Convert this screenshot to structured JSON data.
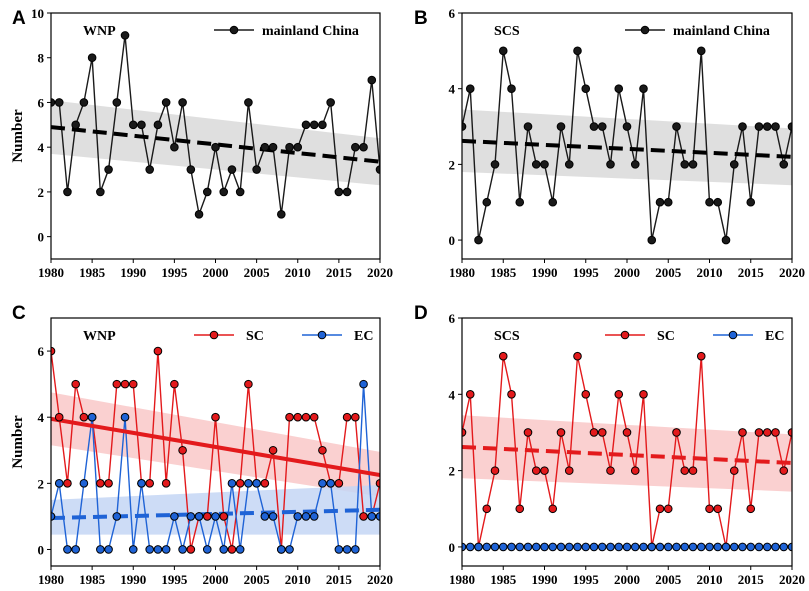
{
  "colors": {
    "black": "#000000",
    "line_black": "#1a1a1a",
    "red": "#e31a1c",
    "blue": "#1f63d6",
    "gray_band": "#d9d9d9",
    "red_band": "#f9c8c8",
    "blue_band": "#c4d6f5"
  },
  "chart_data": [
    {
      "panel_label": "A",
      "type": "line",
      "region_label": "WNP",
      "ylabel": "Number",
      "xlabel": "",
      "xlim": [
        1980,
        2020
      ],
      "ylim": [
        -1,
        10
      ],
      "xticks": [
        1980,
        1985,
        1990,
        1995,
        2000,
        2005,
        2010,
        2015,
        2020
      ],
      "yticks": [
        0,
        2,
        4,
        6,
        8,
        10
      ],
      "legend": "top-right",
      "years": [
        1980,
        1981,
        1982,
        1983,
        1984,
        1985,
        1986,
        1987,
        1988,
        1989,
        1990,
        1991,
        1992,
        1993,
        1994,
        1995,
        1996,
        1997,
        1998,
        1999,
        2000,
        2001,
        2002,
        2003,
        2004,
        2005,
        2006,
        2007,
        2008,
        2009,
        2010,
        2011,
        2012,
        2013,
        2014,
        2015,
        2016,
        2017,
        2018,
        2019,
        2020
      ],
      "series": [
        {
          "name": "mainland China",
          "color": "#1a1a1a",
          "marker_fill": "#1a1a1a",
          "values": [
            6,
            6,
            2,
            5,
            6,
            8,
            2,
            3,
            6,
            9,
            5,
            5,
            3,
            5,
            6,
            4,
            6,
            3,
            1,
            2,
            4,
            2,
            3,
            2,
            6,
            3,
            4,
            4,
            1,
            4,
            4,
            5,
            5,
            5,
            6,
            2,
            2,
            4,
            4,
            7,
            3
          ],
          "trend": {
            "start": 4.9,
            "end": 3.35,
            "style": "dashed",
            "color": "#000000",
            "band_lower": [
              3.7,
              2.3
            ],
            "band_upper": [
              6.1,
              4.4
            ],
            "band_color": "#d9d9d9"
          }
        }
      ]
    },
    {
      "panel_label": "B",
      "type": "line",
      "region_label": "SCS",
      "ylabel": "",
      "xlabel": "",
      "xlim": [
        1980,
        2020
      ],
      "ylim": [
        -0.5,
        6
      ],
      "xticks": [
        1980,
        1985,
        1990,
        1995,
        2000,
        2005,
        2010,
        2015,
        2020
      ],
      "yticks": [
        0,
        2,
        4,
        6
      ],
      "legend": "top-right",
      "years": [
        1980,
        1981,
        1982,
        1983,
        1984,
        1985,
        1986,
        1987,
        1988,
        1989,
        1990,
        1991,
        1992,
        1993,
        1994,
        1995,
        1996,
        1997,
        1998,
        1999,
        2000,
        2001,
        2002,
        2003,
        2004,
        2005,
        2006,
        2007,
        2008,
        2009,
        2010,
        2011,
        2012,
        2013,
        2014,
        2015,
        2016,
        2017,
        2018,
        2019,
        2020
      ],
      "series": [
        {
          "name": "mainland China",
          "color": "#1a1a1a",
          "marker_fill": "#1a1a1a",
          "values": [
            3,
            4,
            0,
            1,
            2,
            5,
            4,
            1,
            3,
            2,
            2,
            1,
            3,
            2,
            5,
            4,
            3,
            3,
            2,
            4,
            3,
            2,
            4,
            0,
            1,
            1,
            3,
            2,
            2,
            5,
            1,
            1,
            0,
            2,
            3,
            1,
            3,
            3,
            3,
            2,
            3
          ],
          "trend": {
            "start": 2.62,
            "end": 2.2,
            "style": "dashed",
            "color": "#000000",
            "band_lower": [
              1.8,
              1.45
            ],
            "band_upper": [
              3.45,
              2.95
            ],
            "band_color": "#d9d9d9"
          }
        }
      ]
    },
    {
      "panel_label": "C",
      "type": "line",
      "region_label": "WNP",
      "ylabel": "Number",
      "xlabel": "",
      "xlim": [
        1980,
        2020
      ],
      "ylim": [
        -0.5,
        7
      ],
      "xticks": [
        1980,
        1985,
        1990,
        1995,
        2000,
        2005,
        2010,
        2015,
        2020
      ],
      "yticks": [
        0,
        2,
        4,
        6
      ],
      "legend": "top-right",
      "years": [
        1980,
        1981,
        1982,
        1983,
        1984,
        1985,
        1986,
        1987,
        1988,
        1989,
        1990,
        1991,
        1992,
        1993,
        1994,
        1995,
        1996,
        1997,
        1998,
        1999,
        2000,
        2001,
        2002,
        2003,
        2004,
        2005,
        2006,
        2007,
        2008,
        2009,
        2010,
        2011,
        2012,
        2013,
        2014,
        2015,
        2016,
        2017,
        2018,
        2019,
        2020
      ],
      "series": [
        {
          "name": "SC",
          "color": "#e31a1c",
          "marker_fill": "#e31a1c",
          "values": [
            6,
            4,
            2,
            5,
            4,
            4,
            2,
            2,
            5,
            5,
            5,
            2,
            2,
            6,
            2,
            5,
            3,
            0,
            1,
            1,
            4,
            1,
            0,
            2,
            5,
            2,
            2,
            3,
            0,
            4,
            4,
            4,
            4,
            3,
            2,
            2,
            4,
            4,
            1,
            1,
            2
          ],
          "trend": {
            "start": 3.95,
            "end": 2.25,
            "style": "solid",
            "color": "#e31a1c",
            "band_lower": [
              3.15,
              1.6
            ],
            "band_upper": [
              4.75,
              2.95
            ],
            "band_color": "#f9c8c8"
          }
        },
        {
          "name": "EC",
          "color": "#1f63d6",
          "marker_fill": "#1f63d6",
          "values": [
            1,
            2,
            0,
            0,
            2,
            4,
            0,
            0,
            1,
            4,
            0,
            2,
            0,
            0,
            0,
            1,
            0,
            1,
            1,
            0,
            1,
            0,
            2,
            0,
            2,
            2,
            1,
            1,
            0,
            0,
            1,
            1,
            1,
            2,
            2,
            0,
            0,
            0,
            5,
            1,
            1
          ],
          "trend": {
            "start": 0.95,
            "end": 1.2,
            "style": "dashed",
            "color": "#1f63d6",
            "band_lower": [
              0.45,
              0.45
            ],
            "band_upper": [
              1.5,
              1.95
            ],
            "band_color": "#c4d6f5"
          }
        }
      ]
    },
    {
      "panel_label": "D",
      "type": "line",
      "region_label": "SCS",
      "ylabel": "",
      "xlabel": "",
      "xlim": [
        1980,
        2020
      ],
      "ylim": [
        -0.5,
        6
      ],
      "xticks": [
        1980,
        1985,
        1990,
        1995,
        2000,
        2005,
        2010,
        2015,
        2020
      ],
      "yticks": [
        0,
        2,
        4,
        6
      ],
      "legend": "top-right",
      "years": [
        1980,
        1981,
        1982,
        1983,
        1984,
        1985,
        1986,
        1987,
        1988,
        1989,
        1990,
        1991,
        1992,
        1993,
        1994,
        1995,
        1996,
        1997,
        1998,
        1999,
        2000,
        2001,
        2002,
        2003,
        2004,
        2005,
        2006,
        2007,
        2008,
        2009,
        2010,
        2011,
        2012,
        2013,
        2014,
        2015,
        2016,
        2017,
        2018,
        2019,
        2020
      ],
      "series": [
        {
          "name": "SC",
          "color": "#e31a1c",
          "marker_fill": "#e31a1c",
          "values": [
            3,
            4,
            0,
            1,
            2,
            5,
            4,
            1,
            3,
            2,
            2,
            1,
            3,
            2,
            5,
            4,
            3,
            3,
            2,
            4,
            3,
            2,
            4,
            0,
            1,
            1,
            3,
            2,
            2,
            5,
            1,
            1,
            0,
            2,
            3,
            1,
            3,
            3,
            3,
            2,
            3
          ],
          "trend": {
            "start": 2.62,
            "end": 2.2,
            "style": "dashed",
            "color": "#e31a1c",
            "band_lower": [
              1.8,
              1.45
            ],
            "band_upper": [
              3.45,
              2.95
            ],
            "band_color": "#f9c8c8"
          }
        },
        {
          "name": "EC",
          "color": "#1f63d6",
          "marker_fill": "#1f63d6",
          "values": [
            0,
            0,
            0,
            0,
            0,
            0,
            0,
            0,
            0,
            0,
            0,
            0,
            0,
            0,
            0,
            0,
            0,
            0,
            0,
            0,
            0,
            0,
            0,
            0,
            0,
            0,
            0,
            0,
            0,
            0,
            0,
            0,
            0,
            0,
            0,
            0,
            0,
            0,
            0,
            0,
            0
          ],
          "trend": {
            "start": 0,
            "end": 0,
            "style": "dashed",
            "color": "#1f63d6",
            "band_lower": [
              0,
              0
            ],
            "band_upper": [
              0,
              0
            ],
            "band_color": "#c4d6f5"
          }
        }
      ]
    }
  ]
}
